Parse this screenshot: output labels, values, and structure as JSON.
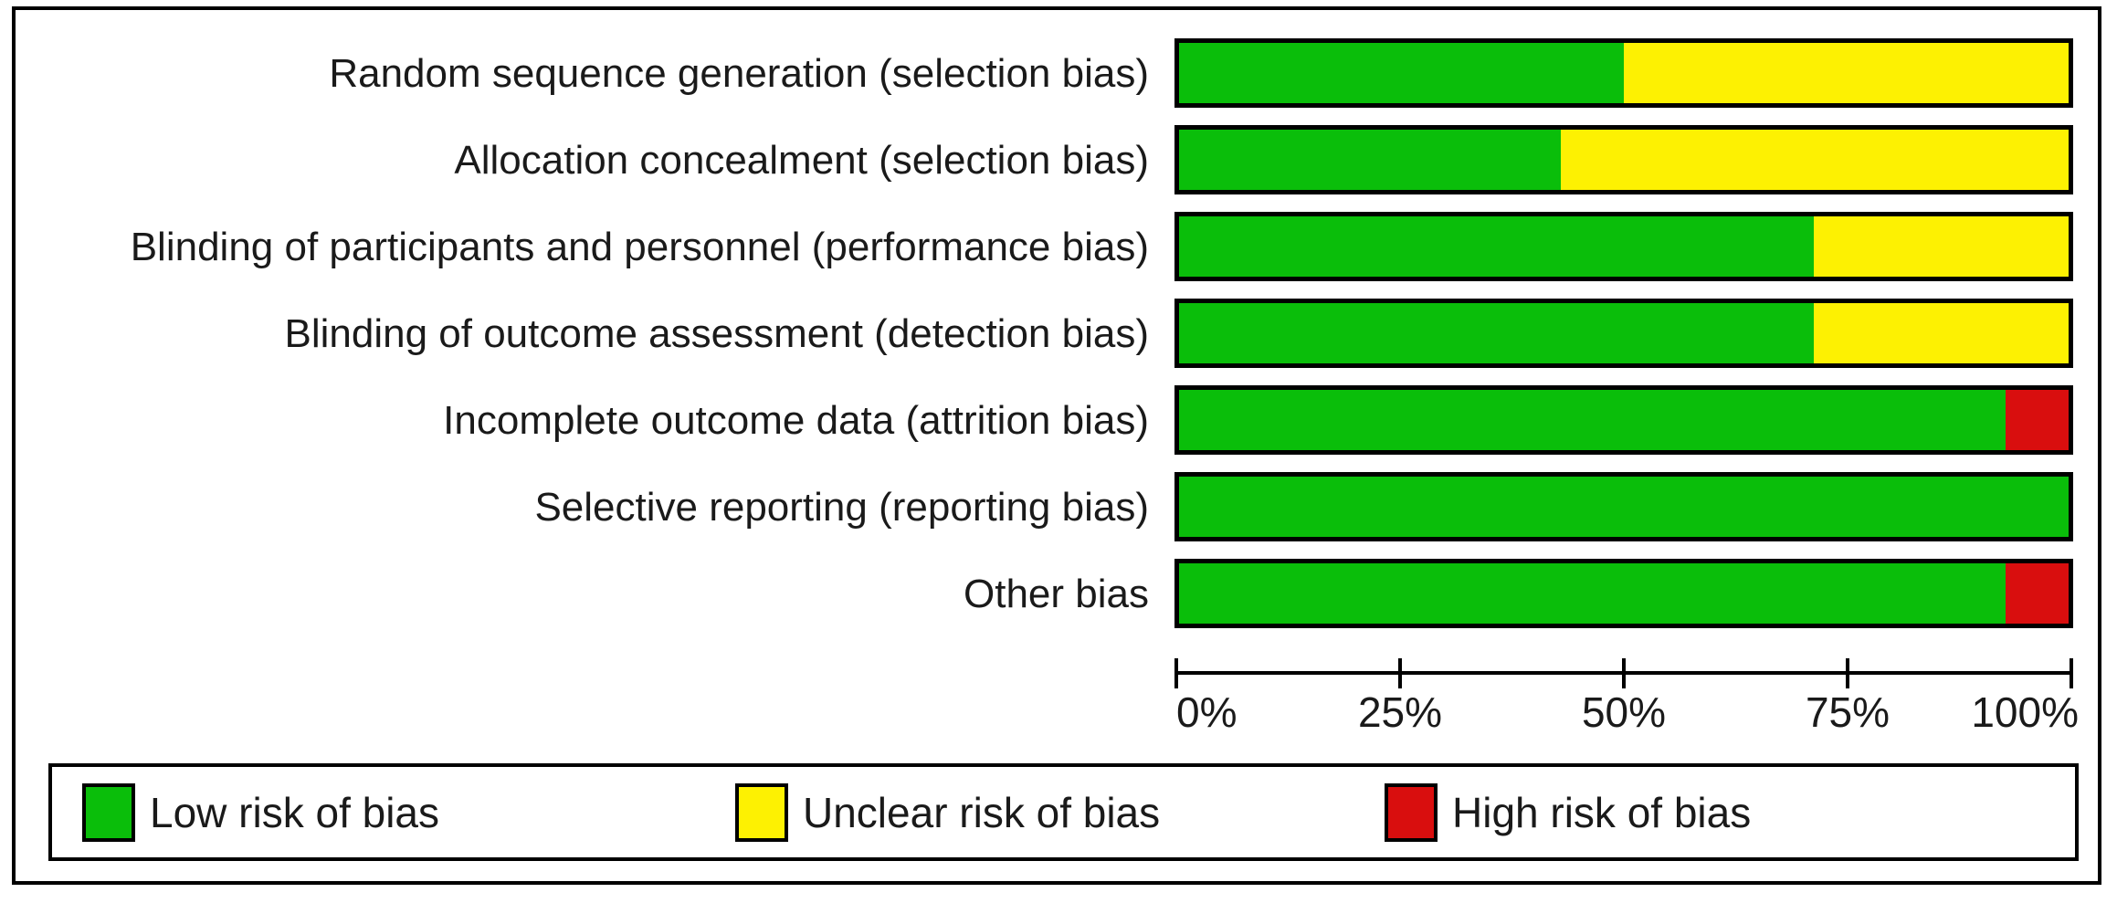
{
  "chart_data": {
    "type": "bar",
    "orientation": "horizontal",
    "stacked": true,
    "unit": "percent",
    "xlim": [
      0,
      100
    ],
    "grid": false,
    "legend_position": "bottom",
    "x_ticks": [
      {
        "label": "0%",
        "value": 0
      },
      {
        "label": "25%",
        "value": 25
      },
      {
        "label": "50%",
        "value": 50
      },
      {
        "label": "75%",
        "value": 75
      },
      {
        "label": "100%",
        "value": 100
      }
    ],
    "categories": [
      "Random sequence generation (selection bias)",
      "Allocation concealment (selection bias)",
      "Blinding of participants and personnel (performance bias)",
      "Blinding of outcome assessment (detection bias)",
      "Incomplete outcome data (attrition bias)",
      "Selective reporting (reporting bias)",
      "Other bias"
    ],
    "series": [
      {
        "name": "Low risk of bias",
        "color": "#0abe0a",
        "values": [
          50,
          42.9,
          71.4,
          71.4,
          92.9,
          100,
          92.9
        ]
      },
      {
        "name": "Unclear risk of bias",
        "color": "#fdf102",
        "values": [
          50,
          57.1,
          28.6,
          28.6,
          0,
          0,
          0
        ]
      },
      {
        "name": "High risk of bias",
        "color": "#d90e0e",
        "values": [
          0,
          0,
          0,
          0,
          7.1,
          0,
          7.1
        ]
      }
    ]
  }
}
